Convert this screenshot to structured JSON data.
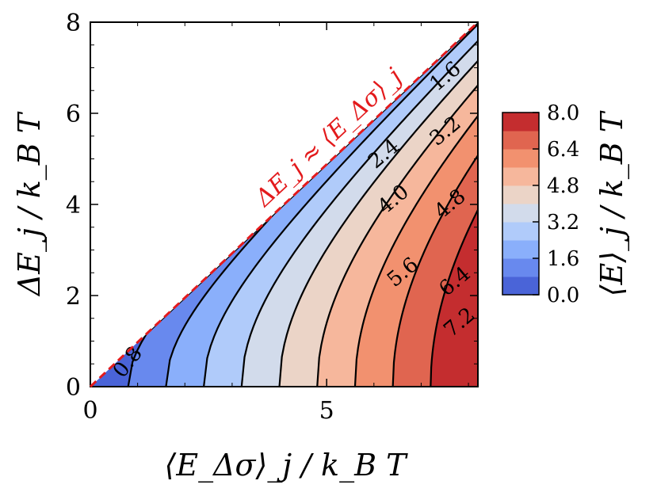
{
  "chart_data": {
    "type": "contourf",
    "xlabel": "⟨E_Δσ⟩_j / k_B T",
    "ylabel": "ΔE_j / k_B T",
    "xlim": [
      0,
      8.2
    ],
    "ylim": [
      0,
      8
    ],
    "x_ticks": [
      "0",
      "5"
    ],
    "y_ticks": [
      "0",
      "2",
      "4",
      "6",
      "8"
    ],
    "levels": [
      0.0,
      0.8,
      1.6,
      2.4,
      3.2,
      4.0,
      4.8,
      5.6,
      6.4,
      7.2,
      8.0
    ],
    "fill_colors": [
      "#4a64d8",
      "#6889ee",
      "#8aaffb",
      "#b0cbfa",
      "#d2dbeb",
      "#ebd4c7",
      "#f6b79c",
      "#f2916f",
      "#e06550",
      "#c42d2f"
    ],
    "contour_labels": [
      "0.8",
      "1.6",
      "2.4",
      "3.2",
      "4.0",
      "4.8",
      "5.6",
      "6.4",
      "7.2"
    ],
    "boundary_line": {
      "from": [
        0,
        0
      ],
      "to": [
        8.2,
        8
      ],
      "color": "#e31a1c",
      "style": "dashed"
    },
    "annotation": "ΔE_j ≈ ⟨E_Δσ⟩_j",
    "colorbar": {
      "label": "⟨E⟩_j / k_B T",
      "tick_labels": [
        "8.0",
        "6.4",
        "4.8",
        "3.2",
        "1.6",
        "0.0"
      ],
      "range": [
        0,
        8
      ]
    },
    "grid": false,
    "legend": "none"
  }
}
